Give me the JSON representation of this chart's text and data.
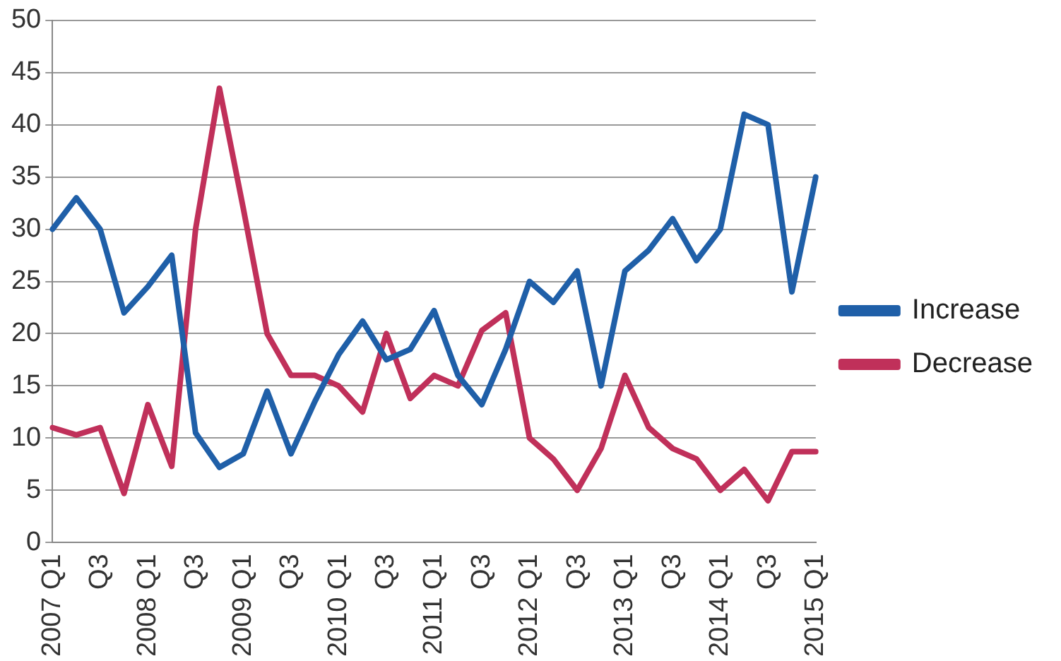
{
  "chart_data": {
    "type": "line",
    "categories": [
      "2007 Q1",
      null,
      "Q3",
      null,
      "2008 Q1",
      null,
      "Q3",
      null,
      "2009 Q1",
      null,
      "Q3",
      null,
      "2010 Q1",
      null,
      "Q3",
      null,
      "2011 Q1",
      null,
      "Q3",
      null,
      "2012 Q1",
      null,
      "Q3",
      null,
      "2013 Q1",
      null,
      "Q3",
      null,
      "2014 Q1",
      null,
      "Q3",
      null,
      "2015 Q1"
    ],
    "series": [
      {
        "name": "Increase",
        "color": "#1f5fa8",
        "values": [
          30,
          33,
          30,
          22,
          24.5,
          27.5,
          10.5,
          7.2,
          8.5,
          14.5,
          8.5,
          13.5,
          18,
          21.2,
          17.5,
          18.5,
          22.2,
          16,
          13.2,
          18.5,
          25,
          23,
          26,
          15,
          26,
          28,
          31,
          27,
          30,
          41,
          40,
          24,
          35
        ]
      },
      {
        "name": "Decrease",
        "color": "#c0305a",
        "values": [
          11,
          10.3,
          11,
          4.7,
          13.2,
          7.3,
          30,
          43.5,
          32,
          20,
          16,
          16,
          15,
          12.5,
          20,
          13.8,
          16,
          15,
          20.3,
          22,
          10,
          8,
          5,
          9,
          16,
          11,
          9,
          8,
          5,
          7,
          4,
          8.7,
          8.7
        ]
      }
    ],
    "ylim": [
      0,
      50
    ],
    "yticks": [
      0,
      5,
      10,
      15,
      20,
      25,
      30,
      35,
      40,
      45,
      50
    ],
    "grid": "y",
    "legend": "right",
    "marker": "none",
    "line_style": "solid"
  }
}
